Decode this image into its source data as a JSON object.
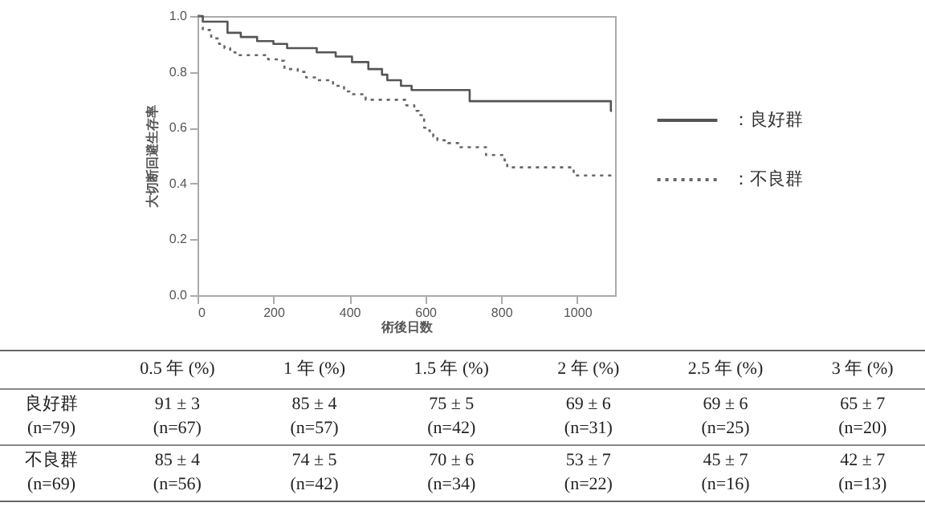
{
  "chart_data": {
    "type": "step",
    "xlabel": "術後日数",
    "ylabel": "大切断回避生存率",
    "xlim": [
      0,
      1100
    ],
    "xticks": [
      0,
      200,
      400,
      600,
      800,
      1000
    ],
    "ylim": [
      0,
      1
    ],
    "yticks": [
      {
        "value": 0,
        "label": "0.0"
      },
      0.2,
      0.4,
      0.6,
      0.8,
      {
        "value": 1,
        "label": "1.0"
      }
    ],
    "grid": false,
    "legend": "right",
    "series": [
      {
        "name": "：良好群",
        "color": "#555555",
        "line_style": "solid",
        "x": [
          0,
          14,
          79,
          114,
          157,
          200,
          236,
          314,
          364,
          407,
          450,
          486,
          500,
          536,
          564,
          717,
          1089,
          1092
        ],
        "values": [
          1,
          0.98,
          0.94,
          0.925,
          0.91,
          0.9,
          0.885,
          0.87,
          0.855,
          0.835,
          0.81,
          0.79,
          0.77,
          0.75,
          0.735,
          0.695,
          0.66,
          0.66
        ]
      },
      {
        "name": "：不良群",
        "color": "#666666",
        "line_style": "dotted",
        "x": [
          0,
          14,
          36,
          57,
          71,
          86,
          100,
          186,
          214,
          229,
          264,
          286,
          314,
          357,
          386,
          400,
          443,
          550,
          571,
          583,
          597,
          611,
          621,
          632,
          660,
          689,
          760,
          809,
          816,
          991,
          1095
        ],
        "values": [
          1,
          0.95,
          0.92,
          0.9,
          0.885,
          0.87,
          0.86,
          0.845,
          0.84,
          0.81,
          0.8,
          0.78,
          0.77,
          0.75,
          0.73,
          0.72,
          0.7,
          0.68,
          0.66,
          0.645,
          0.6,
          0.588,
          0.568,
          0.555,
          0.545,
          0.53,
          0.502,
          0.483,
          0.458,
          0.429,
          0.429
        ]
      }
    ],
    "annotations": [
      "0.5 年 (%)",
      "1 年 (%)",
      "1.5 年 (%)",
      "2 年 (%)",
      "2.5 年 (%)",
      "3 年 (%)",
      "良好群\n(n=79)",
      "91 ± 3\n(n=67)",
      "85 ± 4\n(n=57)",
      "75 ± 5\n(n=42)",
      "69 ± 6\n(n=31)",
      "69 ± 6\n(n=25)",
      "65 ± 7\n(n=20)",
      "不良群\n(n=69)",
      "85 ± 4\n(n=56)",
      "74 ± 5\n(n=42)",
      "70 ± 6\n(n=34)",
      "53 ± 7\n(n=22)",
      "45 ± 7\n(n=16)",
      "42 ± 7\n(n=13)"
    ]
  }
}
